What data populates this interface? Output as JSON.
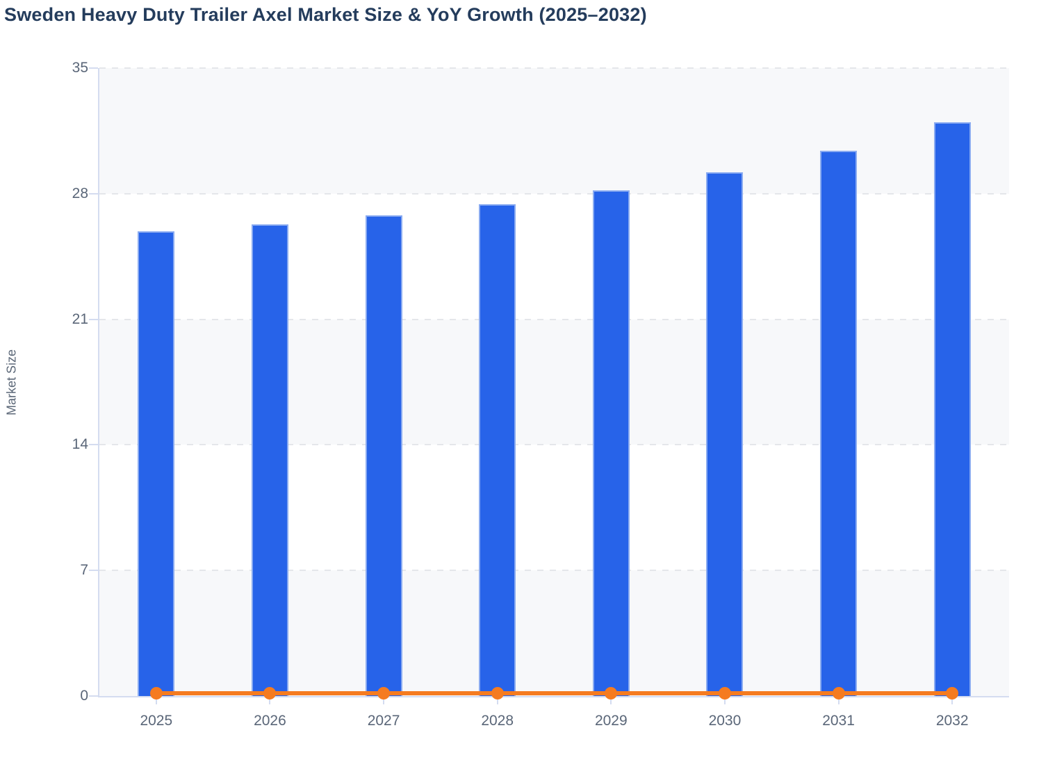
{
  "title": "Sweden Heavy Duty Trailer Axel Market Size & YoY Growth (2025–2032)",
  "chart_data": {
    "type": "bar",
    "title": "Sweden Heavy Duty Trailer Axel Market Size & YoY Growth (2025–2032)",
    "categories": [
      "2025",
      "2026",
      "2027",
      "2028",
      "2029",
      "2030",
      "2031",
      "2032"
    ],
    "series": [
      {
        "name": "Market Size",
        "type": "bar",
        "color": "#2763e9",
        "values": [
          25.9,
          26.3,
          26.8,
          27.4,
          28.2,
          29.2,
          30.4,
          32.0
        ]
      },
      {
        "name": "YoY Growth",
        "type": "line",
        "color": "#f57b20",
        "values": [
          0.1,
          0.1,
          0.1,
          0.1,
          0.1,
          0.1,
          0.1,
          0.1
        ]
      }
    ],
    "xlabel": "",
    "ylabel": "Market Size",
    "ylim": [
      0,
      35
    ],
    "yticks": [
      0,
      7,
      14,
      21,
      28,
      35
    ],
    "grid": "dashed horizontal",
    "band_shading": "alternating light bands between gridlines",
    "legend_position": "none"
  },
  "colors": {
    "title_text": "#243c5c",
    "tick_text": "#5a6678",
    "axis_line": "#d4dcf0",
    "gridline": "#e4e6ea",
    "band_fill": "#f7f8fa",
    "bar_fill": "#2763e9",
    "bar_border": "#96b2f2",
    "line_color": "#f57b20",
    "background": "#ffffff"
  }
}
